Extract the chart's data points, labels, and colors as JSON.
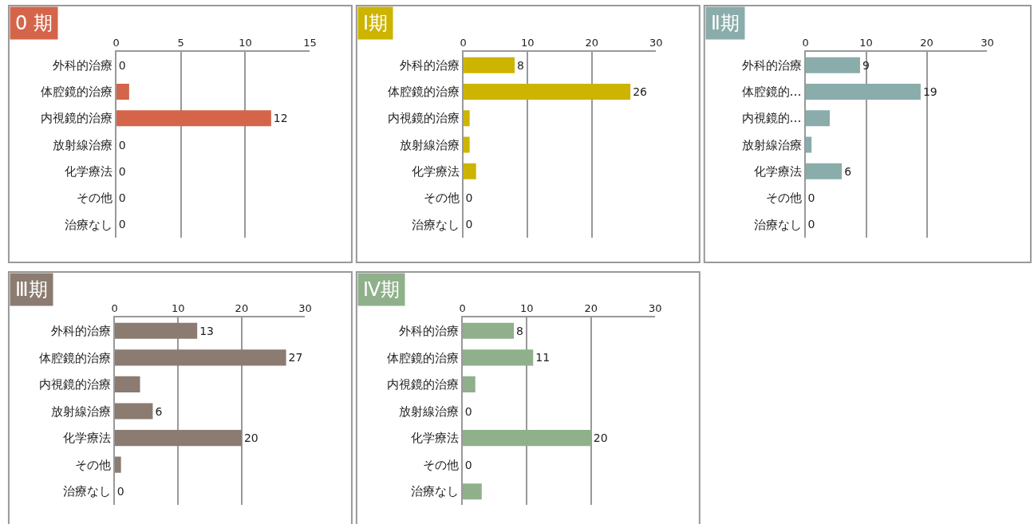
{
  "chart_data": [
    {
      "type": "bar",
      "orientation": "horizontal",
      "title": "0 期",
      "categories": [
        "外科的治療",
        "体腔鏡的治療",
        "内視鏡的治療",
        "放射線治療",
        "化学療法",
        "その他",
        "治療なし"
      ],
      "values": [
        0,
        1,
        12,
        0,
        0,
        0,
        0
      ],
      "value_labels": [
        "0",
        null,
        "12",
        "0",
        "0",
        "0",
        "0"
      ],
      "color": "#d4654b",
      "xlim": [
        0,
        15
      ],
      "xticks": [
        0,
        5,
        10,
        15
      ],
      "grid": "x"
    },
    {
      "type": "bar",
      "orientation": "horizontal",
      "title": "Ⅰ期",
      "categories": [
        "外科的治療",
        "体腔鏡的治療",
        "内視鏡的治療",
        "放射線治療",
        "化学療法",
        "その他",
        "治療なし"
      ],
      "values": [
        8,
        26,
        1,
        1,
        2,
        0,
        0
      ],
      "value_labels": [
        "8",
        "26",
        null,
        null,
        null,
        "0",
        "0"
      ],
      "color": "#ccb400",
      "xlim": [
        0,
        30
      ],
      "xticks": [
        0,
        10,
        20,
        30
      ],
      "grid": "x"
    },
    {
      "type": "bar",
      "orientation": "horizontal",
      "title": "Ⅱ期",
      "categories": [
        "外科的治療",
        "体腔鏡的…",
        "内視鏡的…",
        "放射線治療",
        "化学療法",
        "その他",
        "治療なし"
      ],
      "values": [
        9,
        19,
        4,
        1,
        6,
        0,
        0
      ],
      "value_labels": [
        "9",
        "19",
        null,
        null,
        "6",
        "0",
        "0"
      ],
      "color": "#8aacab",
      "xlim": [
        0,
        30
      ],
      "xticks": [
        0,
        10,
        20,
        30
      ],
      "grid": "x"
    },
    {
      "type": "bar",
      "orientation": "horizontal",
      "title": "Ⅲ期",
      "categories": [
        "外科的治療",
        "体腔鏡的治療",
        "内視鏡的治療",
        "放射線治療",
        "化学療法",
        "その他",
        "治療なし"
      ],
      "values": [
        13,
        27,
        4,
        6,
        20,
        1,
        0
      ],
      "value_labels": [
        "13",
        "27",
        null,
        "6",
        "20",
        null,
        "0"
      ],
      "color": "#8b7b70",
      "xlim": [
        0,
        30
      ],
      "xticks": [
        0,
        10,
        20,
        30
      ],
      "grid": "x"
    },
    {
      "type": "bar",
      "orientation": "horizontal",
      "title": "Ⅳ期",
      "categories": [
        "外科的治療",
        "体腔鏡的治療",
        "内視鏡的治療",
        "放射線治療",
        "化学療法",
        "その他",
        "治療なし"
      ],
      "values": [
        8,
        11,
        2,
        0,
        20,
        0,
        3
      ],
      "value_labels": [
        "8",
        "11",
        null,
        "0",
        "20",
        "0",
        null
      ],
      "color": "#8fb08b",
      "xlim": [
        0,
        30
      ],
      "xticks": [
        0,
        10,
        20,
        30
      ],
      "grid": "x"
    }
  ]
}
